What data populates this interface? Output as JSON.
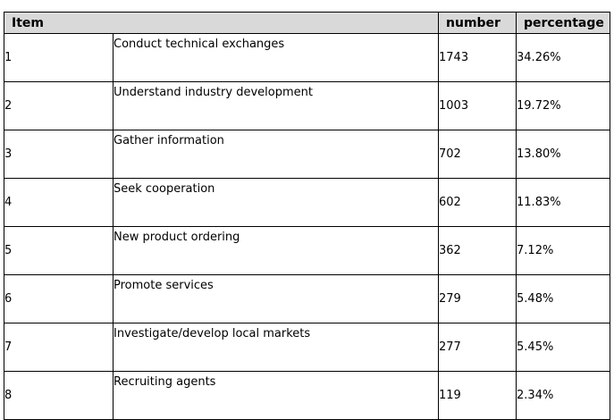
{
  "table": {
    "headers": {
      "item": "Item",
      "number": "number",
      "percentage": "percentage"
    },
    "rows": [
      {
        "item": "1",
        "description": "Conduct technical exchanges",
        "number": "1743",
        "percentage": "34.26%"
      },
      {
        "item": "2",
        "description": "Understand industry development",
        "number": "1003",
        "percentage": "19.72%"
      },
      {
        "item": "3",
        "description": "Gather information",
        "number": "702",
        "percentage": "13.80%"
      },
      {
        "item": "4",
        "description": "Seek cooperation",
        "number": "602",
        "percentage": "11.83%"
      },
      {
        "item": "5",
        "description": "New product ordering",
        "number": "362",
        "percentage": "7.12%"
      },
      {
        "item": "6",
        "description": "Promote services",
        "number": "279",
        "percentage": "5.48%"
      },
      {
        "item": "7",
        "description": "Investigate/develop local markets",
        "number": "277",
        "percentage": "5.45%"
      },
      {
        "item": "8",
        "description": "Recruiting agents",
        "number": "119",
        "percentage": "2.34%"
      }
    ]
  }
}
